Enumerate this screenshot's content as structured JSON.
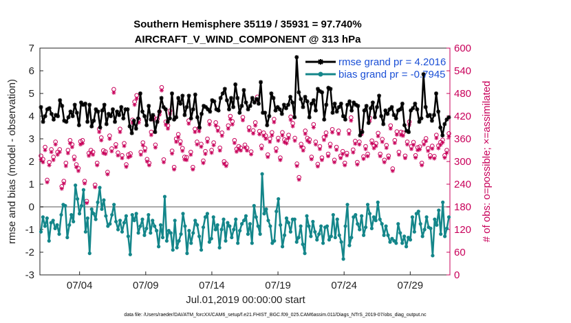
{
  "chart_data": {
    "type": "line",
    "title": "Southern Hemisphere 35119 / 35931 = 97.740%",
    "subtitle": "AIRCRAFT_V_WIND_COMPONENT @ 313 hPa",
    "xlabel": "Jul.01,2019 00:00:00 start",
    "ylabel": "rmse and bias (model - observation)",
    "ylabel_right": "# of obs: o=possible; ×=assimilated",
    "footnote": "data file: /Users/raeder/DAI/ATM_forcXX/CAM6_setup/f.e21.FHIST_BGC.f09_025.CAM6assim.011/Diags_NTrS_2019-07/obs_diag_output.nc",
    "x_tick_labels": [
      "07/04",
      "07/09",
      "07/14",
      "07/19",
      "07/24",
      "07/29"
    ],
    "x_tick_days": [
      4,
      9,
      14,
      19,
      24,
      29
    ],
    "xlim": [
      1,
      32
    ],
    "ylim": [
      -3,
      7
    ],
    "y_ticks": [
      -3,
      -2,
      -1,
      0,
      1,
      2,
      3,
      4,
      5,
      6,
      7
    ],
    "y2lim": [
      0,
      600
    ],
    "y2_ticks": [
      0,
      60,
      120,
      180,
      240,
      300,
      360,
      420,
      480,
      540,
      600
    ],
    "grid": false,
    "legend_position": "top-right",
    "colors": {
      "rmse": "#000000",
      "bias": "#14868a",
      "obs": "#c8005a",
      "zero_line": "#aaaaaa",
      "legend_text": "#1a4fd6"
    },
    "series": [
      {
        "name": "rmse grand pr = 4.2016",
        "values": [
          4.4,
          3.75,
          4.0,
          4.3,
          4.35,
          4.1,
          3.85,
          4.05,
          4.0,
          4.7,
          4.45,
          3.8,
          3.75,
          3.95,
          4.2,
          4.0,
          4.5,
          4.15,
          3.6,
          4.6,
          4.5,
          4.55,
          3.75,
          4.5,
          3.55,
          3.8,
          4.3,
          4.2,
          3.5,
          4.25,
          4.5,
          3.65,
          4.1,
          4.0,
          4.3,
          3.75,
          4.2,
          4.05,
          4.4,
          3.9,
          4.3,
          4.3,
          3.55,
          3.25,
          3.8,
          3.45,
          3.9,
          5.0,
          4.2,
          4.0,
          3.6,
          4.45,
          3.85,
          4.05,
          3.3,
          3.75,
          4.2,
          4.8,
          4.4,
          4.3,
          3.75,
          3.9,
          5.0,
          3.85,
          3.95,
          4.8,
          4.55,
          4.9,
          4.05,
          4.4,
          4.9,
          3.9,
          4.3,
          4.95,
          3.95,
          3.5,
          4.1,
          4.45,
          4.4,
          4.3,
          4.2,
          4.7,
          4.65,
          4.3,
          4.25,
          4.8,
          5.0,
          5.2,
          4.7,
          4.3,
          4.8,
          4.4,
          5.4,
          4.8,
          4.15,
          4.45,
          5.15,
          4.6,
          4.3,
          4.45,
          4.8,
          4.6,
          4.75,
          4.55,
          5.5,
          4.15,
          4.15,
          3.6,
          4.0,
          5.0,
          4.8,
          4.25,
          4.4,
          4.3,
          4.1,
          4.5,
          4.35,
          4.5,
          4.85,
          4.6,
          3.95,
          6.6,
          5.05,
          4.75,
          4.4,
          4.85,
          4.65,
          3.95,
          4.55,
          4.7,
          4.25,
          5.2,
          5.1,
          5.05,
          3.85,
          4.5,
          5.25,
          5.2,
          4.15,
          4.55,
          4.2,
          4.4,
          4.55,
          4.0,
          3.85,
          4.5,
          4.65,
          4.25,
          4.6,
          4.5,
          4.45,
          3.15,
          3.3,
          4.25,
          4.45,
          3.7,
          4.35,
          4.6,
          3.95,
          4.4,
          4.9,
          4.0,
          3.65,
          4.25,
          4.1,
          4.3,
          4.4,
          4.05,
          3.9,
          4.25,
          4.3,
          4.55,
          3.6,
          3.35,
          3.3,
          4.25,
          4.35,
          4.55,
          4.3,
          3.75,
          3.9,
          5.85,
          4.4,
          4.0,
          4.05,
          3.8,
          4.05,
          5.0,
          4.2,
          3.5,
          3.15,
          3.65,
          3.85,
          3.95
        ]
      },
      {
        "name": "bias grand pr = -0.7945",
        "values": [
          -1.1,
          -0.45,
          -0.85,
          -0.5,
          -1.5,
          -0.7,
          -0.6,
          -0.95,
          -0.8,
          -1.2,
          -0.35,
          0.1,
          0.05,
          -1.35,
          -0.8,
          -0.35,
          -0.65,
          0.95,
          0.35,
          -0.3,
          0.05,
          0.75,
          -1.1,
          -0.5,
          -2.05,
          -0.1,
          -0.3,
          -0.55,
          0.2,
          0.85,
          -0.1,
          0.3,
          -0.4,
          -0.85,
          -0.75,
          -0.35,
          0.1,
          -0.65,
          -1.0,
          -0.6,
          -1.1,
          -0.7,
          -0.4,
          -1.3,
          -2.1,
          -0.35,
          -0.6,
          -0.3,
          -1.15,
          -0.85,
          -0.55,
          -1.25,
          -0.95,
          -0.35,
          -1.15,
          -0.6,
          -0.85,
          -1.05,
          -1.75,
          -0.8,
          -1.35,
          0.45,
          -1.5,
          -1.05,
          -1.15,
          -1.9,
          -0.6,
          -1.8,
          -1.5,
          -1.2,
          -0.3,
          -0.85,
          -2.05,
          -1.05,
          -1.6,
          -1.15,
          -0.6,
          -0.8,
          -1.3,
          -1.9,
          -0.9,
          -0.45,
          -0.3,
          -1.55,
          -1.4,
          -0.45,
          -1.0,
          -0.8,
          -1.8,
          -1.0,
          -0.55,
          -1.5,
          -0.7,
          -0.85,
          -1.35,
          -1.0,
          -0.55,
          -1.6,
          -1.05,
          -0.75,
          -0.6,
          -0.4,
          -1.2,
          -0.75,
          -1.6,
          0.05,
          -0.45,
          -0.85,
          -1.2,
          1.45,
          -0.3,
          -0.1,
          -0.6,
          -0.85,
          -1.6,
          -1.5,
          -0.2,
          0.35,
          -0.8,
          -1.75,
          -1.25,
          -0.5,
          -0.7,
          -1.1,
          -0.55,
          -0.55,
          -1.55,
          -1.35,
          -0.85,
          -1.65,
          -2.05,
          -0.4,
          -0.85,
          -1.3,
          -0.65,
          -1.1,
          -1.45,
          -1.2,
          -0.85,
          -1.6,
          -0.9,
          -0.85,
          -1.45,
          -1.3,
          -0.35,
          -1.35,
          -0.55,
          -1.25,
          -1.55,
          -2.3,
          -0.85,
          0.1,
          -1.7,
          -1.35,
          -0.45,
          -0.35,
          -0.75,
          -1.0,
          -0.4,
          -1.25,
          -0.9,
          0.1,
          -0.3,
          -0.95,
          -0.45,
          -0.6,
          0.2,
          -0.55,
          -0.75,
          -1.25,
          -0.85,
          -1.25,
          -1.55,
          -1.4,
          -1.5,
          -1.6,
          -0.75,
          -1.15,
          -1.6,
          -1.3,
          -1.75,
          -1.35,
          -1.45,
          -0.45,
          -1.1,
          -0.3,
          -0.2,
          -0.75,
          -1.3,
          -1.0,
          -0.45,
          -0.9,
          -0.95,
          -2.15,
          -0.55,
          -0.8,
          -0.15,
          -1.2,
          0.2,
          -1.3,
          -0.95,
          -0.45
        ]
      },
      {
        "name": "possible",
        "values": [
          315,
          306,
          338,
          251,
          298,
          332,
          312,
          352,
          325,
          332,
          234,
          248,
          296,
          330,
          356,
          345,
          312,
          292,
          282,
          353,
          356,
          248,
          195,
          322,
          330,
          325,
          238,
          296,
          386,
          363,
          329,
          326,
          272,
          368,
          334,
          491,
          345,
          323,
          386,
          316,
          348,
          292,
          318,
          321,
          410,
          458,
          475,
          411,
          325,
          350,
          335,
          306,
          296,
          378,
          418,
          344,
          413,
          432,
          496,
          305,
          405,
          395,
          434,
          328,
          285,
          360,
          372,
          353,
          335,
          312,
          311,
          408,
          325,
          285,
          386,
          352,
          388,
          346,
          302,
          327,
          360,
          406,
          330,
          350,
          403,
          389,
          336,
          376,
          300,
          294,
          395,
          420,
          406,
          356,
          333,
          340,
          336,
          417,
          344,
          336,
          390,
          326,
          382,
          403,
          471,
          380,
          341,
          376,
          368,
          318,
          360,
          377,
          412,
          334,
          362,
          310,
          377,
          358,
          355,
          370,
          418,
          401,
          362,
          294,
          258,
          346,
          336,
          381,
          362,
          358,
          312,
          398,
          352,
          293,
          340,
          310,
          364,
          376,
          320,
          346,
          385,
          304,
          338,
          381,
          315,
          327,
          296,
          322,
          381,
          416,
          331,
          354,
          298,
          352,
          380,
          313,
          340,
          320,
          415,
          355,
          342,
          348,
          375,
          320,
          359,
          304,
          343,
          315,
          395,
          281,
          356,
          379,
          325,
          378,
          376,
          315,
          352,
          405,
          340,
          351,
          316,
          337,
          339,
          296,
          352,
          361,
          335,
          316,
          341,
          314,
          370,
          342,
          351,
          357,
          316,
          330,
          374
        ]
      },
      {
        "name": "assimilated",
        "values": [
          305,
          298,
          330,
          245,
          290,
          325,
          304,
          345,
          318,
          325,
          228,
          242,
          288,
          322,
          348,
          338,
          305,
          285,
          275,
          345,
          348,
          242,
          190,
          315,
          323,
          318,
          232,
          290,
          378,
          356,
          322,
          320,
          266,
          360,
          327,
          482,
          338,
          316,
          378,
          309,
          341,
          286,
          311,
          314,
          402,
          450,
          466,
          403,
          318,
          343,
          328,
          300,
          290,
          370,
          410,
          337,
          405,
          424,
          488,
          298,
          397,
          387,
          426,
          321,
          279,
          352,
          364,
          346,
          328,
          305,
          304,
          400,
          318,
          279,
          378,
          345,
          380,
          339,
          296,
          320,
          352,
          398,
          323,
          343,
          395,
          381,
          329,
          368,
          294,
          288,
          387,
          412,
          398,
          349,
          326,
          333,
          329,
          409,
          337,
          329,
          382,
          319,
          374,
          395,
          462,
          372,
          334,
          368,
          360,
          312,
          352,
          369,
          404,
          327,
          355,
          304,
          369,
          351,
          348,
          362,
          410,
          393,
          355,
          288,
          252,
          339,
          329,
          373,
          355,
          351,
          306,
          390,
          345,
          287,
          333,
          304,
          357,
          368,
          314,
          339,
          377,
          298,
          331,
          373,
          309,
          320,
          290,
          316,
          373,
          408,
          324,
          347,
          292,
          345,
          372,
          307,
          333,
          314,
          407,
          348,
          335,
          341,
          367,
          314,
          352,
          298,
          336,
          309,
          387,
          275,
          349,
          371,
          318,
          370,
          368,
          309,
          345,
          397,
          333,
          344,
          310,
          330,
          332,
          290,
          345,
          354,
          328,
          310,
          334,
          308,
          362,
          335,
          344,
          350,
          310,
          323,
          366
        ]
      }
    ]
  }
}
